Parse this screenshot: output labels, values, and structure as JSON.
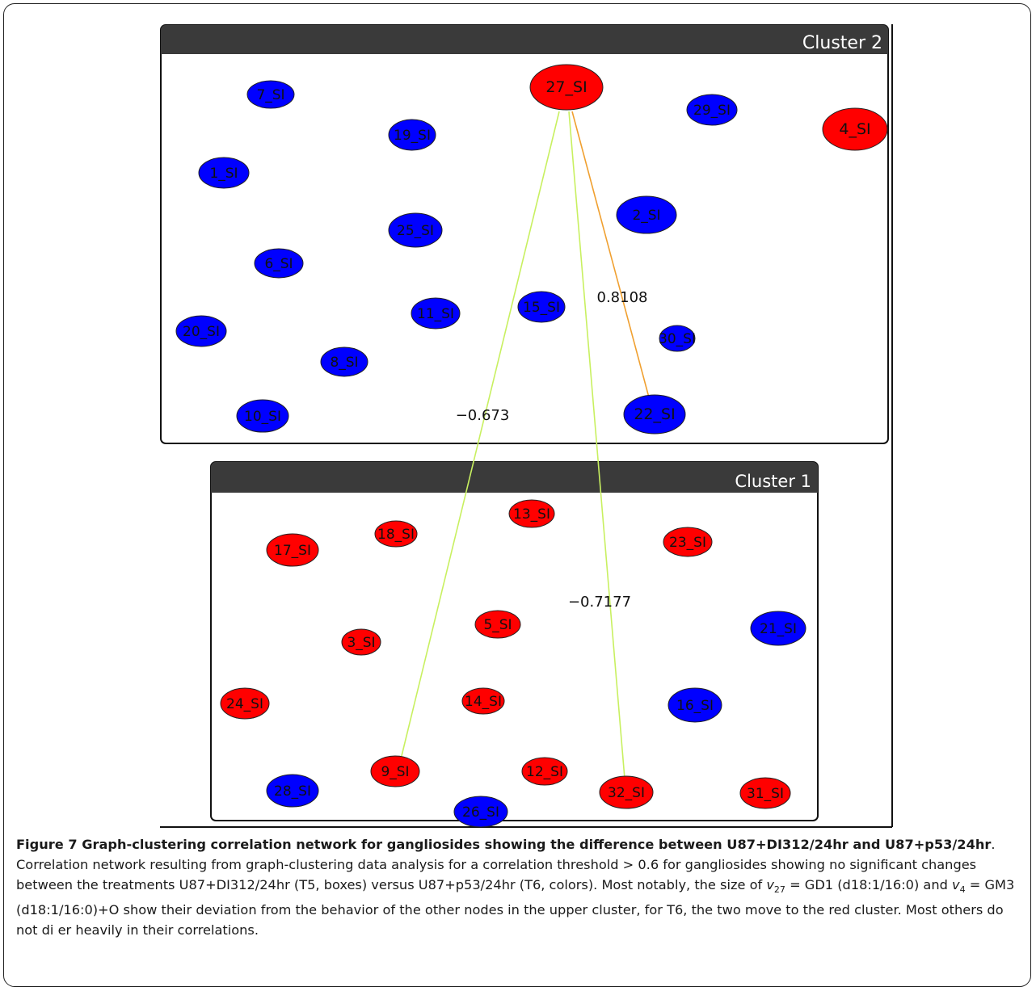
{
  "clusters": [
    {
      "name": "Cluster 2"
    },
    {
      "name": "Cluster 1"
    }
  ],
  "colors": {
    "red": "#ff0000",
    "blue": "#0000ff",
    "header": "#3a3a3a",
    "edge_green": "#c8f060",
    "edge_orange": "#f0a030"
  },
  "nodes": [
    {
      "id": "27_SI",
      "color": "red",
      "cluster": "Cluster 2"
    },
    {
      "id": "7_SI",
      "color": "blue",
      "cluster": "Cluster 2"
    },
    {
      "id": "19_SI",
      "color": "blue",
      "cluster": "Cluster 2"
    },
    {
      "id": "29_SI",
      "color": "blue",
      "cluster": "Cluster 2"
    },
    {
      "id": "4_SI",
      "color": "red",
      "cluster": "Cluster 2"
    },
    {
      "id": "1_SI",
      "color": "blue",
      "cluster": "Cluster 2"
    },
    {
      "id": "2_SI",
      "color": "blue",
      "cluster": "Cluster 2"
    },
    {
      "id": "25_SI",
      "color": "blue",
      "cluster": "Cluster 2"
    },
    {
      "id": "6_SI",
      "color": "blue",
      "cluster": "Cluster 2"
    },
    {
      "id": "15_SI",
      "color": "blue",
      "cluster": "Cluster 2"
    },
    {
      "id": "11_SI",
      "color": "blue",
      "cluster": "Cluster 2"
    },
    {
      "id": "20_SI",
      "color": "blue",
      "cluster": "Cluster 2"
    },
    {
      "id": "30_SI",
      "color": "blue",
      "cluster": "Cluster 2"
    },
    {
      "id": "8_SI",
      "color": "blue",
      "cluster": "Cluster 2"
    },
    {
      "id": "10_SI",
      "color": "blue",
      "cluster": "Cluster 2"
    },
    {
      "id": "22_SI",
      "color": "blue",
      "cluster": "Cluster 2"
    },
    {
      "id": "13_SI",
      "color": "red",
      "cluster": "Cluster 1"
    },
    {
      "id": "18_SI",
      "color": "red",
      "cluster": "Cluster 1"
    },
    {
      "id": "17_SI",
      "color": "red",
      "cluster": "Cluster 1"
    },
    {
      "id": "23_SI",
      "color": "red",
      "cluster": "Cluster 1"
    },
    {
      "id": "5_SI",
      "color": "red",
      "cluster": "Cluster 1"
    },
    {
      "id": "3_SI",
      "color": "red",
      "cluster": "Cluster 1"
    },
    {
      "id": "21_SI",
      "color": "blue",
      "cluster": "Cluster 1"
    },
    {
      "id": "24_SI",
      "color": "red",
      "cluster": "Cluster 1"
    },
    {
      "id": "14_SI",
      "color": "red",
      "cluster": "Cluster 1"
    },
    {
      "id": "16_SI",
      "color": "blue",
      "cluster": "Cluster 1"
    },
    {
      "id": "9_SI",
      "color": "red",
      "cluster": "Cluster 1"
    },
    {
      "id": "12_SI",
      "color": "red",
      "cluster": "Cluster 1"
    },
    {
      "id": "31_SI",
      "color": "red",
      "cluster": "Cluster 1"
    },
    {
      "id": "28_SI",
      "color": "blue",
      "cluster": "Cluster 1"
    },
    {
      "id": "32_SI",
      "color": "red",
      "cluster": "Cluster 1"
    },
    {
      "id": "26_SI",
      "color": "blue",
      "cluster": "Cluster 1"
    }
  ],
  "edges": [
    {
      "source": "27_SI",
      "target": "9_SI",
      "weight": "−0.673",
      "color": "edge_green"
    },
    {
      "source": "27_SI",
      "target": "32_SI",
      "weight": "−0.7177",
      "color": "edge_green"
    },
    {
      "source": "27_SI",
      "target": "22_SI",
      "weight": "0.8108",
      "color": "edge_orange"
    }
  ],
  "caption": {
    "label": "Figure 7",
    "title": "Graph-clustering correlation network for gangliosides showing the difference between U87+DI312/24hr and U87+p53/24hr",
    "body_1": "Correlation network resulting from graph-clustering data analysis for a correlation threshold > 0.6 for gangliosides showing no significant changes between the treatments U87+DI312/24hr (T5, boxes) versus U87+p53/24hr (T6, colors). Most notably, the size of ",
    "v27_var": "v",
    "v27_sub": "27",
    "body_2": " = GD1 (d18:1/16:0) and ",
    "v4_var": "v",
    "v4_sub": "4",
    "body_3": " = GM3 (d18:1/16:0)+O show their deviation from the behavior of the other nodes in the upper cluster, for T6, the two move to the red cluster. Most others do not di er heavily in their correlations."
  }
}
